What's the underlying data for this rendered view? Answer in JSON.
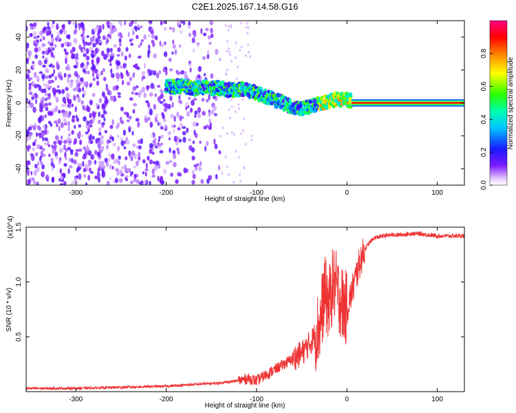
{
  "title": "C2E1.2025.167.14.58.G16",
  "chart_data": [
    {
      "type": "heatmap",
      "xlabel": "Height of straight line (km)",
      "ylabel": "Frequency (Hz)",
      "xlim": [
        -355,
        130
      ],
      "ylim": [
        -50,
        50
      ],
      "x_ticks": [
        "-300",
        "-200",
        "-100",
        "0",
        "100"
      ],
      "x_tick_values": [
        -300,
        -200,
        -100,
        0,
        100
      ],
      "y_ticks": [
        "-40",
        "-20",
        "0",
        "20",
        "40"
      ],
      "y_tick_values": [
        -40,
        -20,
        0,
        20,
        40
      ],
      "colorbar": {
        "label": "Normalized spectral amplitude",
        "ticks": [
          "0.0",
          "0.2",
          "0.4",
          "0.6",
          "0.8"
        ],
        "tick_values": [
          0.0,
          0.2,
          0.4,
          0.6,
          0.8
        ],
        "range": [
          0,
          1
        ],
        "colormap": "rainbow (white-violet-blue-cyan-green-yellow-red-magenta)"
      },
      "ridge": {
        "x": [
          -200,
          -190,
          -180,
          -170,
          -160,
          -150,
          -140,
          -130,
          -120,
          -110,
          -100,
          -90,
          -80,
          -70,
          -60,
          -50,
          -40,
          -30,
          -20,
          -10,
          0,
          10,
          130
        ],
        "y": [
          10,
          10,
          10,
          9,
          9,
          9,
          9,
          8,
          8,
          8,
          6,
          4,
          2,
          0,
          -3,
          -4,
          -2,
          0,
          1,
          2,
          2,
          0,
          0
        ],
        "description": "main signal band, saturated (amplitude ~1) for x > 5 km near 0 Hz"
      },
      "noise_region_x": [
        -355,
        -140
      ]
    },
    {
      "type": "line",
      "xlabel": "Height of straight line (km)",
      "ylabel": "SNR (10 * v/v)",
      "y_multiplier": "(x10^4)",
      "xlim": [
        -355,
        130
      ],
      "ylim": [
        0,
        1.5
      ],
      "x_ticks": [
        "-300",
        "-200",
        "-100",
        "0",
        "100"
      ],
      "x_tick_values": [
        -300,
        -200,
        -100,
        0,
        100
      ],
      "y_ticks": [
        "0.5",
        "1.0",
        "1.5"
      ],
      "y_tick_values": [
        0.5,
        1.0,
        1.5
      ],
      "series": [
        {
          "color": "#ee3333",
          "x": [
            -355,
            -300,
            -250,
            -200,
            -180,
            -160,
            -140,
            -120,
            -110,
            -100,
            -90,
            -80,
            -70,
            -60,
            -50,
            -40,
            -30,
            -25,
            -20,
            -15,
            -10,
            -5,
            0,
            5,
            10,
            15,
            20,
            25,
            30,
            40,
            50,
            60,
            70,
            80,
            90,
            100,
            110,
            120,
            130
          ],
          "y": [
            0.03,
            0.03,
            0.04,
            0.05,
            0.06,
            0.07,
            0.08,
            0.1,
            0.12,
            0.1,
            0.15,
            0.2,
            0.25,
            0.3,
            0.35,
            0.45,
            0.6,
            0.9,
            0.8,
            1.0,
            0.9,
            0.8,
            0.75,
            0.9,
            1.05,
            1.2,
            1.3,
            1.36,
            1.4,
            1.42,
            1.43,
            1.43,
            1.44,
            1.44,
            1.43,
            1.42,
            1.42,
            1.42,
            1.42
          ]
        }
      ]
    }
  ]
}
